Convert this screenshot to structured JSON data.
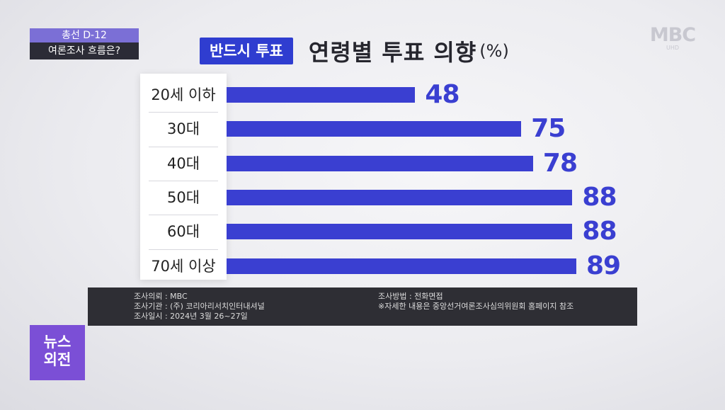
{
  "corner_tag": {
    "line1": "총선 D-12",
    "line2": "여론조사 흐름은?"
  },
  "broadcaster": {
    "logo": "MBC",
    "sub": "UHD"
  },
  "header": {
    "badge": "반드시 투표",
    "title": "연령별 투표 의향",
    "unit": "(%)"
  },
  "chart_data": {
    "type": "bar",
    "orientation": "horizontal",
    "categories": [
      "20세 이하",
      "30대",
      "40대",
      "50대",
      "60대",
      "70세 이상"
    ],
    "values": [
      48,
      75,
      78,
      88,
      88,
      89
    ],
    "title": "연령별 투표 의향",
    "xlabel": "",
    "ylabel": "",
    "xlim": [
      0,
      100
    ],
    "bar_color": "#3a3fd1",
    "grid": false
  },
  "footer": {
    "left": [
      "조사의뢰 : MBC",
      "조사기관 : (주) 코리아리서치인터내셔널",
      "조사일시 : 2024년 3월 26~27일"
    ],
    "right": [
      "조사방법 : 전화면접",
      "※자세한 내용은 중앙선거여론조사심의위원회 홈페이지 참조"
    ]
  },
  "show_logo": {
    "line1": "뉴스",
    "line2": "외전"
  },
  "colors": {
    "accent": "#3a3fd1",
    "badge": "#2f3dd0",
    "tag": "#7b6fd6",
    "footer_bg": "#2e2e34"
  }
}
